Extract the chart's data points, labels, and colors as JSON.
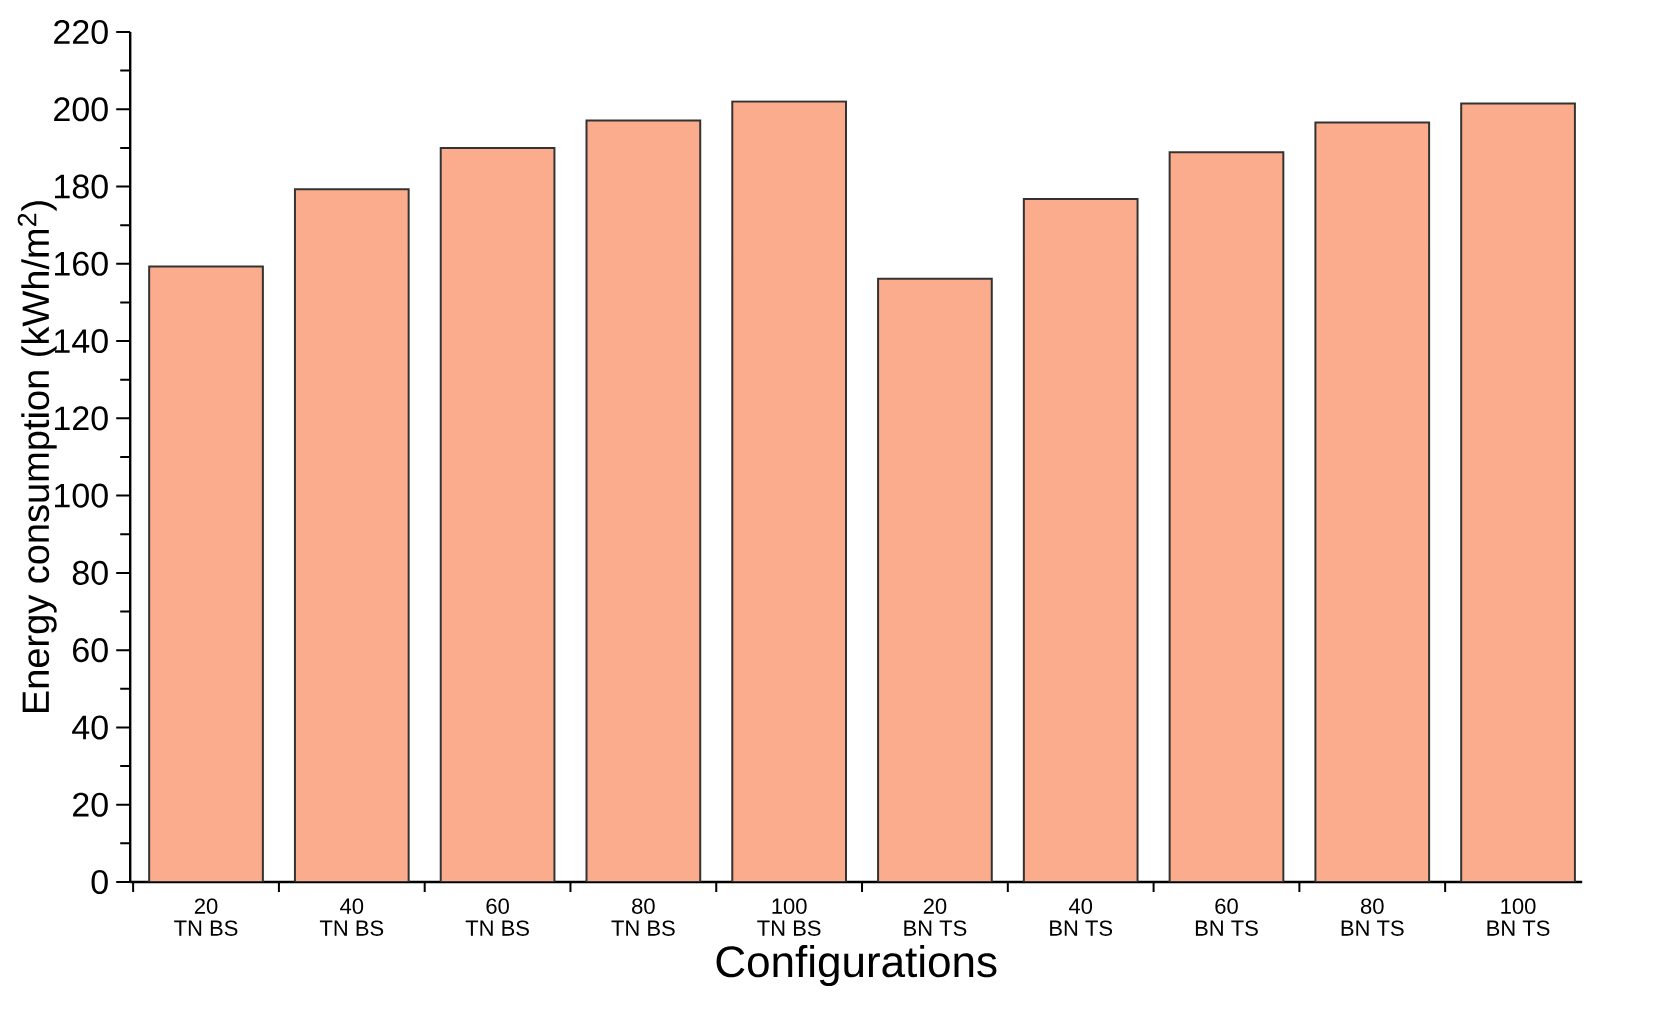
{
  "chart_data": {
    "type": "bar",
    "xlabel": "Configurations",
    "ylabel": "Energy consumption (kWh/m$^{2}$)",
    "categories": [
      "20 TN BS",
      "40 TN BS",
      "60 TN BS",
      "80 TN BS",
      "100 TN BS",
      "20 BN TS",
      "40 BN TS",
      "60 BN TS",
      "80 BN TS",
      "100 BN TS"
    ],
    "values": [
      159.3,
      179.3,
      190.0,
      197.1,
      202.0,
      156.1,
      176.8,
      188.9,
      196.6,
      201.5
    ],
    "color": "#faac8c",
    "ylim": [
      0,
      220
    ],
    "yticks": [
      0,
      20,
      40,
      60,
      80,
      100,
      120,
      140,
      160,
      180,
      200,
      220
    ],
    "grid": false
  }
}
